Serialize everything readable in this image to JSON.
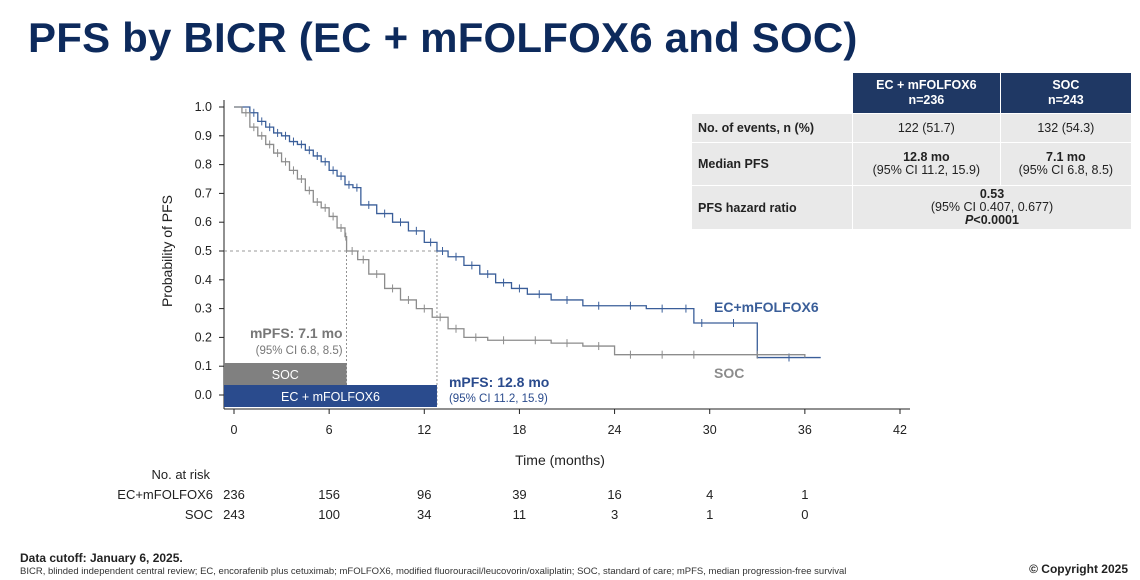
{
  "title": "PFS by BICR (EC + mFOLFOX6 and SOC)",
  "table": {
    "headers": [
      {
        "line1": "EC + mFOLFOX6",
        "line2": "n=236"
      },
      {
        "line1": "SOC",
        "line2": "n=243"
      }
    ],
    "rows": {
      "events": {
        "label": "No. of events, n (%)",
        "ec": "122 (51.7)",
        "soc": "132 (54.3)"
      },
      "median": {
        "label": "Median PFS",
        "ec_main": "12.8 mo",
        "ec_ci": "(95% CI 11.2, 15.9)",
        "soc_main": "7.1 mo",
        "soc_ci": "(95% CI 6.8, 8.5)"
      },
      "hr": {
        "label": "PFS hazard ratio",
        "main": "0.53",
        "ci": "(95% CI 0.407, 0.677)",
        "p_label": "P",
        "p_value": "<0.0001"
      }
    }
  },
  "chart_data": {
    "type": "line",
    "xlabel": "Time (months)",
    "ylabel": "Probability of PFS",
    "xlim": [
      0,
      42
    ],
    "ylim": [
      0,
      1.0
    ],
    "xticks": [
      0,
      6,
      12,
      18,
      24,
      30,
      36,
      42
    ],
    "yticks": [
      0.0,
      0.1,
      0.2,
      0.3,
      0.4,
      0.5,
      0.6,
      0.7,
      0.8,
      0.9,
      1.0
    ],
    "series": [
      {
        "name": "EC+mFOLFOX6",
        "color": "#3a5e99",
        "x": [
          0,
          1,
          1.5,
          2,
          2.5,
          3,
          3.5,
          4,
          4.5,
          5,
          5.5,
          6,
          6.5,
          7,
          7.5,
          8,
          9,
          10,
          11,
          12,
          12.8,
          13.5,
          14.5,
          15.5,
          16.5,
          17.5,
          18.5,
          20,
          22,
          24,
          26,
          28,
          29,
          30,
          33,
          37
        ],
        "y": [
          1.0,
          0.98,
          0.95,
          0.93,
          0.91,
          0.9,
          0.88,
          0.87,
          0.85,
          0.83,
          0.81,
          0.78,
          0.76,
          0.73,
          0.72,
          0.66,
          0.63,
          0.6,
          0.57,
          0.53,
          0.5,
          0.48,
          0.45,
          0.42,
          0.39,
          0.37,
          0.35,
          0.33,
          0.31,
          0.31,
          0.3,
          0.3,
          0.25,
          0.25,
          0.13,
          0.13
        ]
      },
      {
        "name": "SOC",
        "color": "#8c8c8c",
        "x": [
          0,
          0.5,
          1,
          1.5,
          2,
          2.5,
          3,
          3.5,
          4,
          4.5,
          5,
          5.5,
          6,
          6.5,
          7,
          7.1,
          7.8,
          8.5,
          9.5,
          10.5,
          11.5,
          12.5,
          13.5,
          14.5,
          16,
          18,
          20,
          22,
          24,
          26,
          28,
          30,
          36
        ],
        "y": [
          1.0,
          0.98,
          0.93,
          0.9,
          0.87,
          0.84,
          0.81,
          0.78,
          0.75,
          0.71,
          0.67,
          0.65,
          0.62,
          0.58,
          0.55,
          0.5,
          0.47,
          0.42,
          0.37,
          0.33,
          0.3,
          0.27,
          0.23,
          0.2,
          0.19,
          0.19,
          0.18,
          0.17,
          0.14,
          0.14,
          0.14,
          0.14,
          0.13
        ]
      }
    ],
    "series_labels": [
      {
        "text": "EC+mFOLFOX6",
        "color": "#3a5e99"
      },
      {
        "text": "SOC",
        "color": "#8c8c8c"
      }
    ],
    "median_line_y": 0.5,
    "medians": [
      {
        "value": 7.1,
        "label": "mPFS: 7.1 mo",
        "ci": "(95% CI 6.8, 8.5)",
        "bar_label": "SOC",
        "color": "#808080"
      },
      {
        "value": 12.8,
        "label": "mPFS: 12.8 mo",
        "ci": "(95% CI 11.2, 15.9)",
        "bar_label": "EC + mFOLFOX6",
        "color": "#2a4b8d"
      }
    ]
  },
  "risk_table": {
    "header": "No. at risk",
    "times": [
      0,
      6,
      12,
      18,
      24,
      30,
      36
    ],
    "rows": [
      {
        "label": "EC+mFOLFOX6",
        "values": [
          "236",
          "156",
          "96",
          "39",
          "16",
          "4",
          "1"
        ]
      },
      {
        "label": "SOC",
        "values": [
          "243",
          "100",
          "34",
          "11",
          "3",
          "1",
          "0"
        ]
      }
    ]
  },
  "footer": {
    "cutoff": "Data cutoff: January 6, 2025.",
    "abbreviations": "BICR, blinded independent central review; EC, encorafenib plus cetuximab; mFOLFOX6, modified fluorouracil/leucovorin/oxaliplatin; SOC, standard of care; mPFS, median progression-free survival",
    "copyright": "© Copyright 2025"
  }
}
